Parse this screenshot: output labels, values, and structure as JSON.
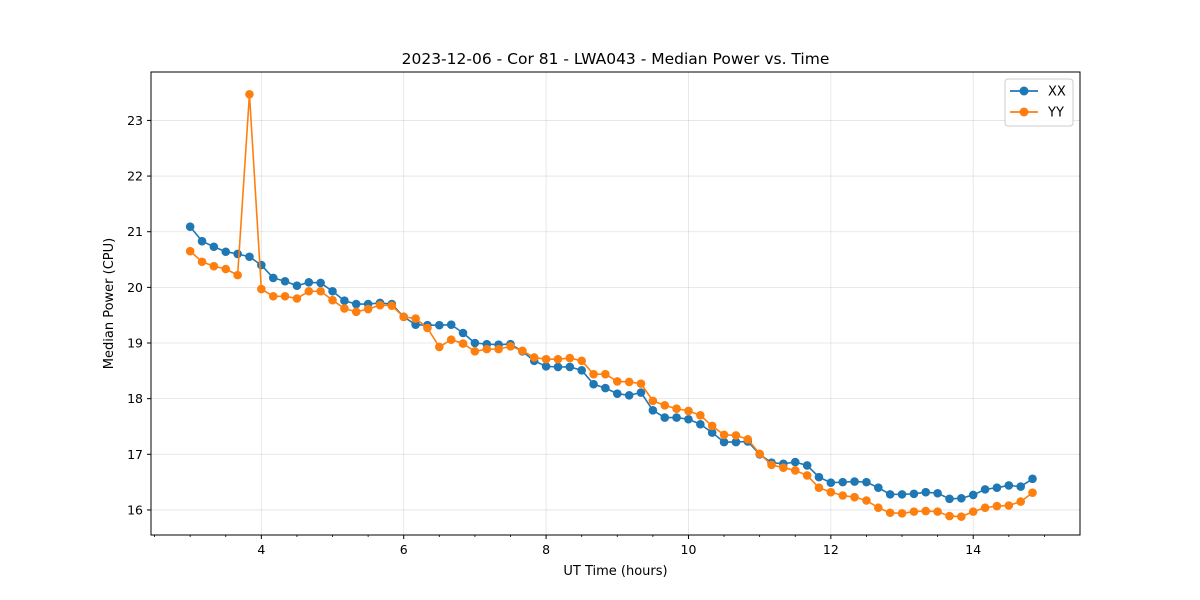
{
  "chart_data": {
    "type": "line",
    "title": "2023-12-06 - Cor 81 - LWA043 - Median Power vs. Time",
    "xlabel": "UT Time (hours)",
    "ylabel": "Median Power (CPU)",
    "xlim": [
      2.45,
      15.5
    ],
    "ylim": [
      15.55,
      23.87
    ],
    "xticks": [
      4,
      6,
      8,
      10,
      12,
      14
    ],
    "xtick_labels": [
      "4",
      "6",
      "8",
      "10",
      "12",
      "14"
    ],
    "yticks": [
      16,
      17,
      18,
      19,
      20,
      21,
      22,
      23
    ],
    "ytick_labels": [
      "16",
      "17",
      "18",
      "19",
      "20",
      "21",
      "22",
      "23"
    ],
    "grid": true,
    "legend_position": "top-right",
    "x": [
      3.0,
      3.167,
      3.333,
      3.5,
      3.667,
      3.833,
      4.0,
      4.167,
      4.333,
      4.5,
      4.667,
      4.833,
      5.0,
      5.167,
      5.333,
      5.5,
      5.667,
      5.833,
      6.0,
      6.167,
      6.333,
      6.5,
      6.667,
      6.833,
      7.0,
      7.167,
      7.333,
      7.5,
      7.667,
      7.833,
      8.0,
      8.167,
      8.333,
      8.5,
      8.667,
      8.833,
      9.0,
      9.167,
      9.333,
      9.5,
      9.667,
      9.833,
      10.0,
      10.167,
      10.333,
      10.5,
      10.667,
      10.833,
      11.0,
      11.167,
      11.333,
      11.5,
      11.667,
      11.833,
      12.0,
      12.167,
      12.333,
      12.5,
      12.667,
      12.833,
      13.0,
      13.167,
      13.333,
      13.5,
      13.667,
      13.833,
      14.0,
      14.167,
      14.333,
      14.5,
      14.667,
      14.833
    ],
    "series": [
      {
        "name": "XX",
        "color": "#1f77b4",
        "values": [
          21.09,
          20.83,
          20.73,
          20.64,
          20.6,
          20.55,
          20.4,
          20.17,
          20.11,
          20.03,
          20.09,
          20.08,
          19.93,
          19.76,
          19.7,
          19.7,
          19.72,
          19.7,
          19.47,
          19.33,
          19.32,
          19.32,
          19.33,
          19.18,
          19.0,
          18.98,
          18.97,
          18.98,
          18.85,
          18.68,
          18.58,
          18.57,
          18.57,
          18.51,
          18.26,
          18.19,
          18.09,
          18.06,
          18.11,
          17.79,
          17.66,
          17.66,
          17.63,
          17.54,
          17.39,
          17.22,
          17.22,
          17.23,
          17.0,
          16.85,
          16.83,
          16.86,
          16.8,
          16.59,
          16.49,
          16.5,
          16.51,
          16.5,
          16.4,
          16.28,
          16.28,
          16.29,
          16.32,
          16.3,
          16.2,
          16.21,
          16.27,
          16.37,
          16.4,
          16.44,
          16.42,
          16.56
        ]
      },
      {
        "name": "YY",
        "color": "#ff7f0e",
        "values": [
          20.65,
          20.46,
          20.38,
          20.33,
          20.22,
          23.47,
          19.97,
          19.84,
          19.84,
          19.8,
          19.93,
          19.93,
          19.77,
          19.62,
          19.56,
          19.61,
          19.68,
          19.67,
          19.47,
          19.44,
          19.27,
          18.93,
          19.06,
          18.99,
          18.85,
          18.89,
          18.89,
          18.94,
          18.86,
          18.74,
          18.71,
          18.71,
          18.73,
          18.68,
          18.44,
          18.44,
          18.31,
          18.3,
          18.27,
          17.96,
          17.88,
          17.82,
          17.78,
          17.7,
          17.51,
          17.35,
          17.34,
          17.27,
          17.01,
          16.81,
          16.76,
          16.71,
          16.62,
          16.4,
          16.32,
          16.26,
          16.23,
          16.17,
          16.04,
          15.95,
          15.94,
          15.97,
          15.98,
          15.97,
          15.89,
          15.88,
          15.97,
          16.04,
          16.07,
          16.08,
          16.15,
          16.31
        ]
      }
    ]
  }
}
